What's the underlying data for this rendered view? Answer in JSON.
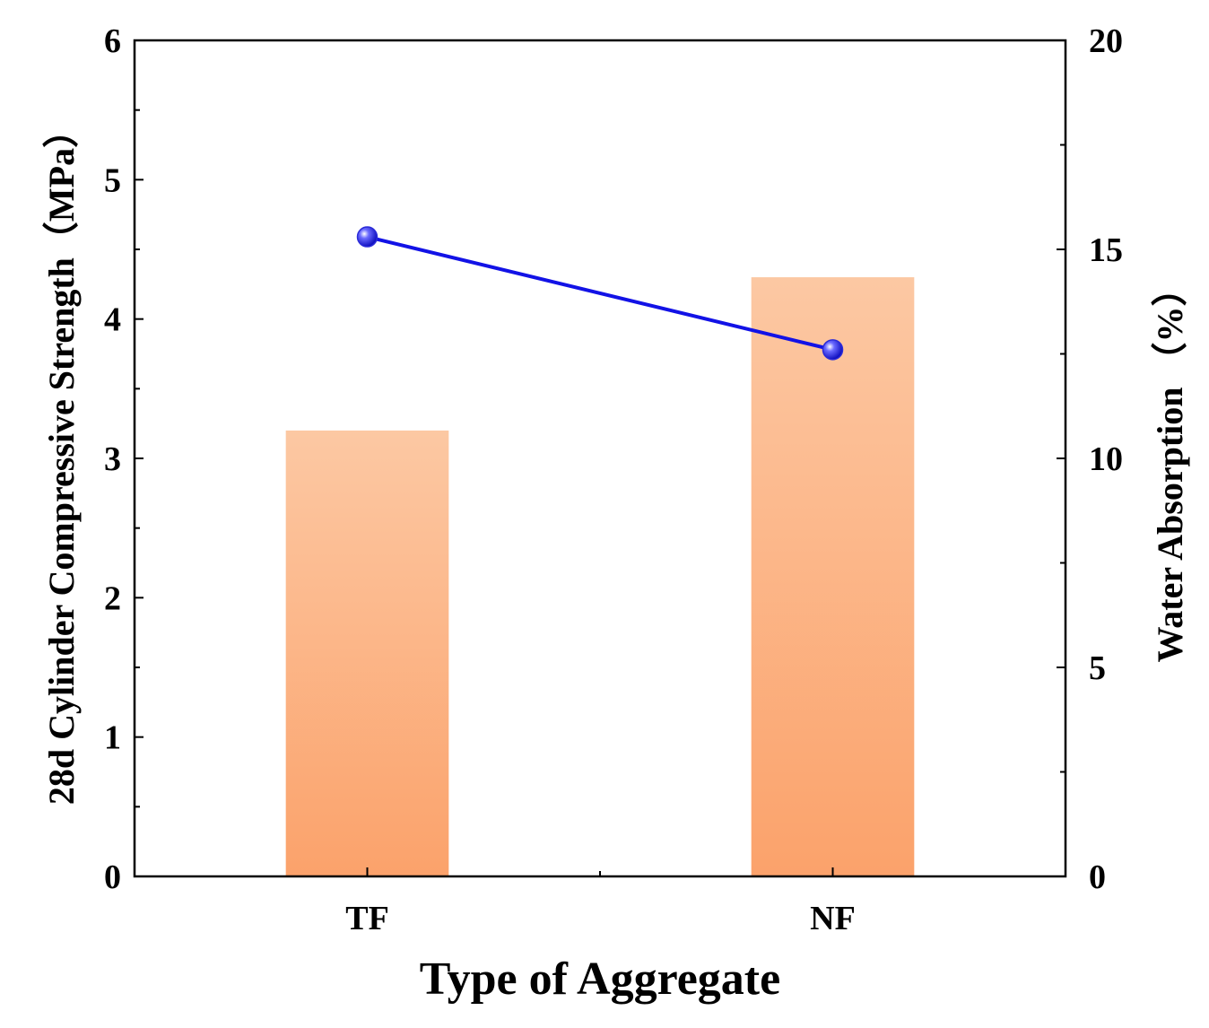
{
  "chart_data": {
    "type": "bar",
    "categories": [
      "TF",
      "NF"
    ],
    "xlabel": "Type of Aggregate",
    "ylabel_left": "28d Cylinder Compressive Strength（MPa）",
    "ylabel_right": "Water Absorption （%）",
    "ylim_left": [
      0,
      6
    ],
    "ylim_right": [
      0,
      20
    ],
    "yticks_left": [
      "0",
      "1",
      "2",
      "3",
      "4",
      "5",
      "6"
    ],
    "yticks_right": [
      "0",
      "5",
      "10",
      "15",
      "20"
    ],
    "series": [
      {
        "kind": "bar",
        "axis": "left",
        "values": [
          3.2,
          4.3
        ]
      },
      {
        "kind": "line",
        "axis": "right",
        "values": [
          15.3,
          12.6
        ]
      }
    ],
    "grid": false,
    "legend": "none",
    "colors": {
      "bar_top": "#fcc8a3",
      "bar_bottom": "#fba26b",
      "line": "#1212e6",
      "marker": "#2b2bd8"
    }
  }
}
